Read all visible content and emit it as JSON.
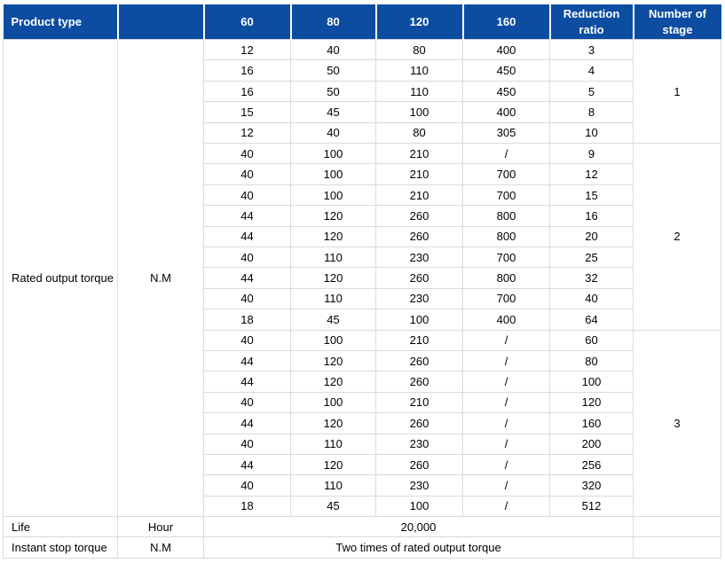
{
  "colors": {
    "header_bg": "#0C4DA2",
    "header_text": "#FFFFFF",
    "body_text": "#000000",
    "border": "#DADADA",
    "background": "#FFFFFF"
  },
  "header": {
    "product_type": "Product type",
    "unit_col": "",
    "sizes": [
      "60",
      "80",
      "120",
      "160"
    ],
    "reduction_ratio": "Reduction ratio",
    "number_of_stage": "Number of stage"
  },
  "body": {
    "rated": {
      "label": "Rated output torque",
      "unit": "N.M"
    },
    "groups": [
      {
        "stage": "1",
        "rows": [
          [
            "12",
            "40",
            "80",
            "400",
            "3"
          ],
          [
            "16",
            "50",
            "110",
            "450",
            "4"
          ],
          [
            "16",
            "50",
            "110",
            "450",
            "5"
          ],
          [
            "15",
            "45",
            "100",
            "400",
            "8"
          ],
          [
            "12",
            "40",
            "80",
            "305",
            "10"
          ]
        ]
      },
      {
        "stage": "2",
        "rows": [
          [
            "40",
            "100",
            "210",
            "/",
            "9"
          ],
          [
            "40",
            "100",
            "210",
            "700",
            "12"
          ],
          [
            "40",
            "100",
            "210",
            "700",
            "15"
          ],
          [
            "44",
            "120",
            "260",
            "800",
            "16"
          ],
          [
            "44",
            "120",
            "260",
            "800",
            "20"
          ],
          [
            "40",
            "110",
            "230",
            "700",
            "25"
          ],
          [
            "44",
            "120",
            "260",
            "800",
            "32"
          ],
          [
            "40",
            "110",
            "230",
            "700",
            "40"
          ],
          [
            "18",
            "45",
            "100",
            "400",
            "64"
          ]
        ]
      },
      {
        "stage": "3",
        "rows": [
          [
            "40",
            "100",
            "210",
            "/",
            "60"
          ],
          [
            "44",
            "120",
            "260",
            "/",
            "80"
          ],
          [
            "44",
            "120",
            "260",
            "/",
            "100"
          ],
          [
            "40",
            "100",
            "210",
            "/",
            "120"
          ],
          [
            "44",
            "120",
            "260",
            "/",
            "160"
          ],
          [
            "40",
            "110",
            "230",
            "/",
            "200"
          ],
          [
            "44",
            "120",
            "260",
            "/",
            "256"
          ],
          [
            "40",
            "110",
            "230",
            "/",
            "320"
          ],
          [
            "18",
            "45",
            "100",
            "/",
            "512"
          ]
        ]
      }
    ],
    "footer_rows": [
      {
        "label": "Life",
        "unit": "Hour",
        "value": "20,000"
      },
      {
        "label": "Instant stop torque",
        "unit": "N.M",
        "value": "Two times of rated output torque"
      }
    ]
  }
}
